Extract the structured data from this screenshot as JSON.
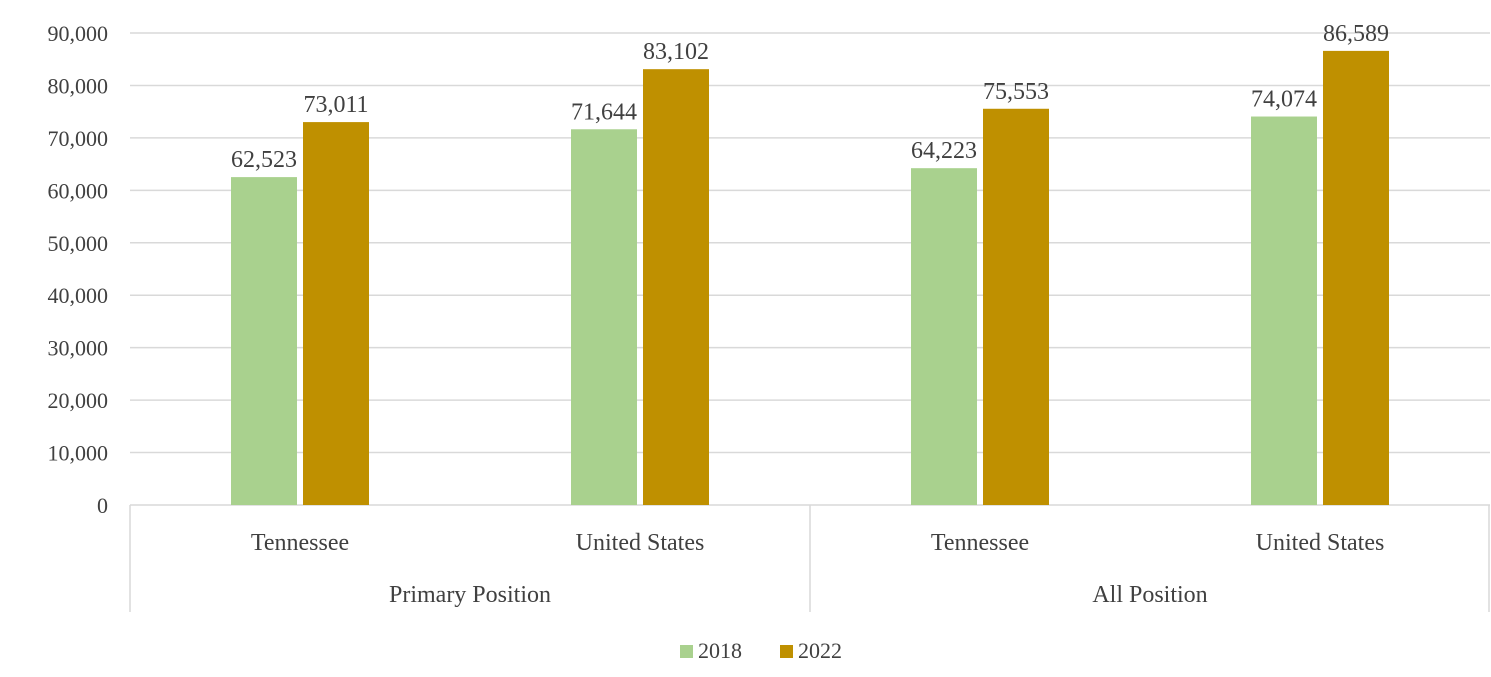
{
  "chart_data": {
    "type": "bar",
    "groups": [
      {
        "label": "Primary Position",
        "categories": [
          "Tennessee",
          "United States"
        ]
      },
      {
        "label": "All Position",
        "categories": [
          "Tennessee",
          "United States"
        ]
      }
    ],
    "categories": [
      "Tennessee",
      "United States",
      "Tennessee",
      "United States"
    ],
    "series": [
      {
        "name": "2018",
        "color": "#a9d18e",
        "values": [
          62523,
          71644,
          64223,
          74074
        ],
        "labels": [
          "62,523",
          "71,644",
          "64,223",
          "74,074"
        ]
      },
      {
        "name": "2022",
        "color": "#bf9000",
        "values": [
          73011,
          83102,
          75553,
          86589
        ],
        "labels": [
          "73,011",
          "83,102",
          "75,553",
          "86,589"
        ]
      }
    ],
    "ylim": [
      0,
      90000
    ],
    "yticks": [
      0,
      10000,
      20000,
      30000,
      40000,
      50000,
      60000,
      70000,
      80000,
      90000
    ],
    "ytick_labels": [
      "0",
      "10,000",
      "20,000",
      "30,000",
      "40,000",
      "50,000",
      "60,000",
      "70,000",
      "80,000",
      "90,000"
    ],
    "grid": true,
    "legend_position": "bottom",
    "title": "",
    "xlabel": "",
    "ylabel": ""
  }
}
